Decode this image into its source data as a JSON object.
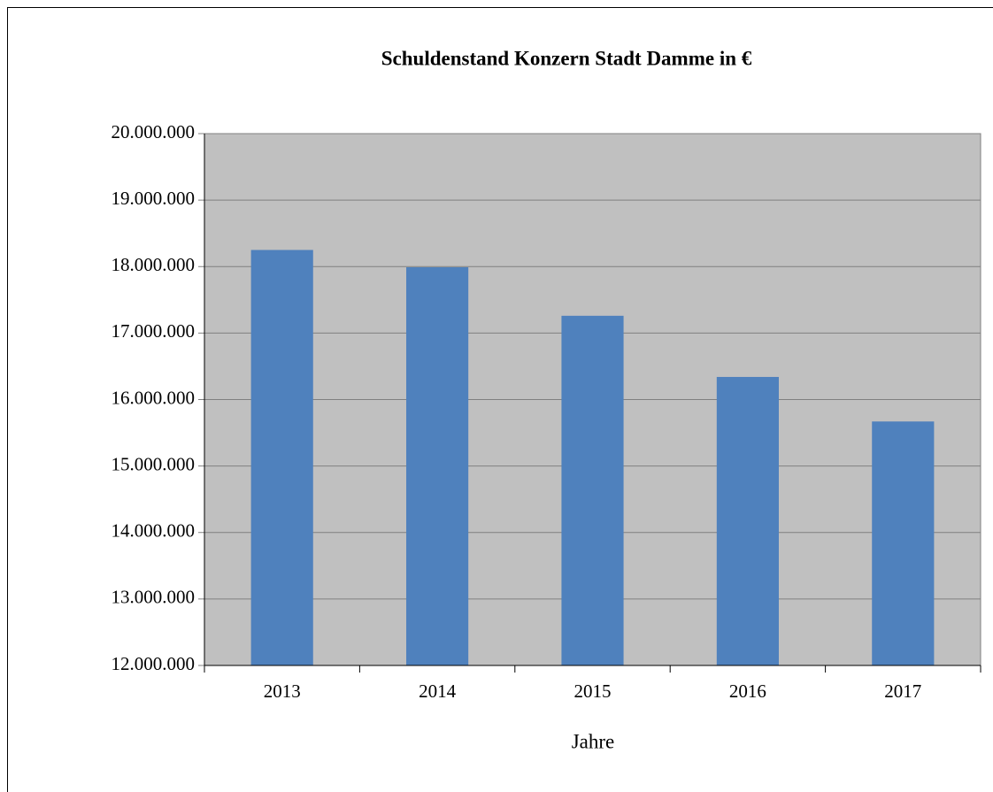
{
  "chart_data": {
    "type": "bar",
    "title": "Schuldenstand Konzern Stadt Damme in €",
    "x_label": "Jahre",
    "categories": [
      "2013",
      "2014",
      "2015",
      "2016",
      "2017"
    ],
    "values": [
      18250000,
      17990000,
      17260000,
      16340000,
      15670000
    ],
    "color": "#4f81bd",
    "ylim": [
      12000000,
      20000000
    ],
    "yticks": [
      {
        "value": 12000000,
        "label": "12.000.000"
      },
      {
        "value": 13000000,
        "label": "13.000.000"
      },
      {
        "value": 14000000,
        "label": "14.000.000"
      },
      {
        "value": 15000000,
        "label": "15.000.000"
      },
      {
        "value": 16000000,
        "label": "16.000.000"
      },
      {
        "value": 17000000,
        "label": "17.000.000"
      },
      {
        "value": 18000000,
        "label": "18.000.000"
      },
      {
        "value": 19000000,
        "label": "19.000.000"
      },
      {
        "value": 20000000,
        "label": "20.000.000"
      }
    ],
    "grid": true
  }
}
